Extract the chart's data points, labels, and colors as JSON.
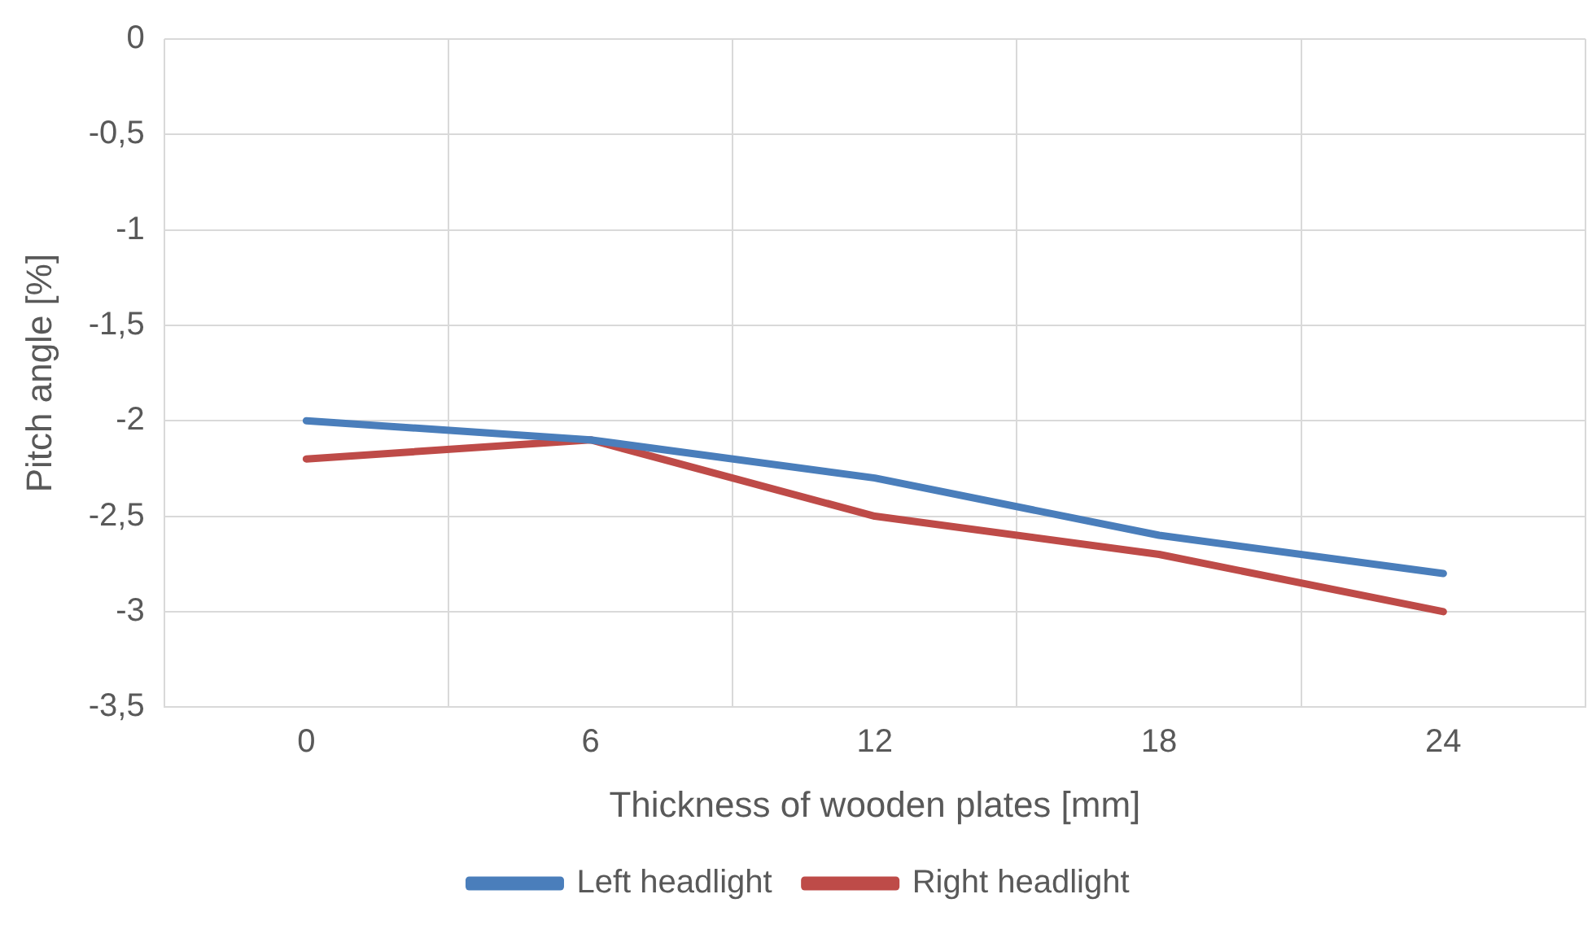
{
  "chart_data": {
    "type": "line",
    "xlabel": "Thickness of wooden plates [mm]",
    "ylabel": "Pitch angle [%]",
    "categories": [
      "0",
      "6",
      "12",
      "18",
      "24"
    ],
    "series": [
      {
        "name": "Left headlight",
        "color": "#4a7ebb",
        "values": [
          -2,
          -2.1,
          -2.3,
          -2.6,
          -2.8
        ]
      },
      {
        "name": "Right headlight",
        "color": "#be4b48",
        "values": [
          -2.2,
          -2.1,
          -2.5,
          -2.7,
          -3
        ]
      }
    ],
    "ylim": [
      -3.5,
      0
    ],
    "yticks": [
      {
        "value": -3.5,
        "label": "-3,5"
      },
      {
        "value": -3,
        "label": "-3"
      },
      {
        "value": -2.5,
        "label": "-2,5"
      },
      {
        "value": -2,
        "label": "-2"
      },
      {
        "value": -1.5,
        "label": "-1,5"
      },
      {
        "value": -1,
        "label": "-1"
      },
      {
        "value": -0.5,
        "label": "-0,5"
      },
      {
        "value": 0,
        "label": "0"
      }
    ],
    "grid": true,
    "legend": "bottom",
    "marker": "none",
    "line_style": "solid"
  }
}
